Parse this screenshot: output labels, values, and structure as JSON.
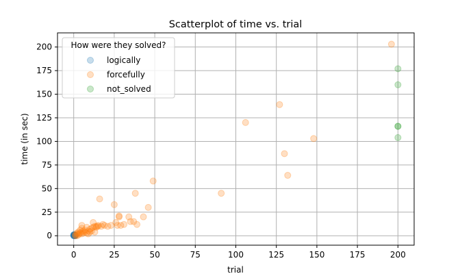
{
  "chart_data": {
    "type": "scatter",
    "title": "Scatterplot of time vs. trial",
    "xlabel": "trial",
    "ylabel": "time (in sec)",
    "xlim": [
      -10,
      210
    ],
    "ylim": [
      -10,
      215
    ],
    "xticks": [
      "0",
      "25",
      "50",
      "75",
      "100",
      "125",
      "150",
      "175",
      "200"
    ],
    "yticks": [
      "0",
      "25",
      "50",
      "75",
      "100",
      "125",
      "150",
      "175",
      "200"
    ],
    "grid": true,
    "legend": {
      "title": "How were they solved?",
      "placement": "top-left"
    },
    "series": [
      {
        "name": "logically",
        "color": "#1f77b4",
        "points": [
          [
            0,
            0
          ],
          [
            0,
            1
          ],
          [
            0,
            0.5
          ],
          [
            0.3,
            0
          ],
          [
            0.5,
            1
          ],
          [
            0.2,
            0.3
          ],
          [
            0.6,
            0.5
          ],
          [
            0.8,
            0.2
          ],
          [
            0.4,
            0.8
          ],
          [
            1,
            0
          ],
          [
            0.1,
            0.2
          ],
          [
            0.7,
            0.9
          ],
          [
            0.9,
            0.4
          ],
          [
            0.2,
            1.2
          ],
          [
            1.2,
            0.6
          ]
        ]
      },
      {
        "name": "forcefully",
        "color": "#ff7f0e",
        "points": [
          [
            1,
            0
          ],
          [
            1,
            1
          ],
          [
            2,
            0
          ],
          [
            2,
            2
          ],
          [
            2,
            3
          ],
          [
            3,
            1
          ],
          [
            3,
            4
          ],
          [
            3,
            2
          ],
          [
            4,
            3
          ],
          [
            4,
            6
          ],
          [
            5,
            2
          ],
          [
            5,
            4
          ],
          [
            5,
            8
          ],
          [
            5,
            11
          ],
          [
            6,
            3
          ],
          [
            6,
            5
          ],
          [
            7,
            6
          ],
          [
            7,
            4
          ],
          [
            8,
            3
          ],
          [
            8,
            9
          ],
          [
            9,
            5
          ],
          [
            9,
            2
          ],
          [
            10,
            7
          ],
          [
            10,
            4
          ],
          [
            11,
            8
          ],
          [
            11,
            5
          ],
          [
            12,
            14
          ],
          [
            12,
            9
          ],
          [
            13,
            10
          ],
          [
            13,
            4
          ],
          [
            14,
            9
          ],
          [
            14,
            10
          ],
          [
            15,
            10
          ],
          [
            15,
            11
          ],
          [
            16,
            39
          ],
          [
            17,
            10
          ],
          [
            18,
            12
          ],
          [
            19,
            11
          ],
          [
            21,
            10
          ],
          [
            23,
            11
          ],
          [
            25,
            33
          ],
          [
            26,
            14
          ],
          [
            27,
            11
          ],
          [
            28,
            20
          ],
          [
            28,
            21
          ],
          [
            29,
            11
          ],
          [
            31,
            12
          ],
          [
            34,
            20
          ],
          [
            35,
            15
          ],
          [
            37,
            15
          ],
          [
            38,
            45
          ],
          [
            39,
            12
          ],
          [
            43,
            20
          ],
          [
            46,
            30
          ],
          [
            49,
            58
          ],
          [
            91,
            45
          ],
          [
            106,
            120
          ],
          [
            127,
            139
          ],
          [
            130,
            87
          ],
          [
            132,
            64
          ],
          [
            148,
            103
          ],
          [
            196,
            203
          ]
        ]
      },
      {
        "name": "not_solved",
        "color": "#2ca02c",
        "points": [
          [
            200,
            177
          ],
          [
            200,
            160
          ],
          [
            200,
            116
          ],
          [
            200,
            116
          ],
          [
            200,
            104
          ]
        ]
      }
    ]
  }
}
